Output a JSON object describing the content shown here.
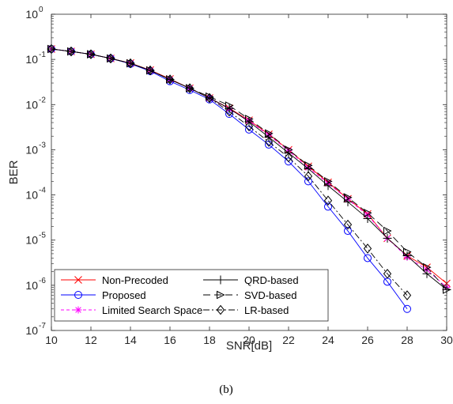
{
  "caption": "(b)",
  "chart_data": {
    "type": "line",
    "xlabel": "SNR[dB]",
    "ylabel": "BER",
    "xlim": [
      10,
      30
    ],
    "ylim": [
      1e-07,
      1
    ],
    "yscale": "log",
    "x_ticks": [
      10,
      12,
      14,
      16,
      18,
      20,
      22,
      24,
      26,
      28,
      30
    ],
    "y_ticks": [
      {
        "base": "10",
        "exp": "0",
        "value": 1
      },
      {
        "base": "10",
        "exp": "-1",
        "value": 0.1
      },
      {
        "base": "10",
        "exp": "-2",
        "value": 0.01
      },
      {
        "base": "10",
        "exp": "-3",
        "value": 0.001
      },
      {
        "base": "10",
        "exp": "-4",
        "value": 0.0001
      },
      {
        "base": "10",
        "exp": "-5",
        "value": 1e-05
      },
      {
        "base": "10",
        "exp": "-6",
        "value": 1e-06
      },
      {
        "base": "10",
        "exp": "-7",
        "value": 1e-07
      }
    ],
    "grid": false,
    "legend_position": "bottom-left",
    "x": [
      10,
      11,
      12,
      13,
      14,
      15,
      16,
      17,
      18,
      19,
      20,
      21,
      22,
      23,
      24,
      25,
      26,
      27,
      28,
      29,
      30
    ],
    "series": [
      {
        "name": "Non-Precoded",
        "color": "#ff0000",
        "dash": "",
        "marker": "x",
        "values": [
          0.17,
          0.15,
          0.13,
          0.105,
          0.083,
          0.058,
          0.037,
          0.023,
          0.014,
          0.0083,
          0.0045,
          0.0022,
          0.001,
          0.00043,
          0.00019,
          8.2e-05,
          3.8e-05,
          1.1e-05,
          4.5e-06,
          2.5e-06,
          1.1e-06
        ]
      },
      {
        "name": "Proposed",
        "color": "#0000ff",
        "dash": "",
        "marker": "circle",
        "values": [
          0.17,
          0.15,
          0.13,
          0.105,
          0.08,
          0.055,
          0.033,
          0.021,
          0.013,
          0.0062,
          0.0028,
          0.0013,
          0.00055,
          0.0002,
          5.5e-05,
          1.6e-05,
          4e-06,
          1.2e-06,
          3e-07,
          null,
          null
        ]
      },
      {
        "name": "Limited Search Space",
        "color": "#ff00ff",
        "dash": "4,3",
        "marker": "star",
        "values": [
          0.17,
          0.15,
          0.13,
          0.105,
          0.082,
          0.057,
          0.036,
          0.023,
          0.014,
          0.008,
          0.0044,
          0.0021,
          0.00095,
          0.0004,
          0.00018,
          8e-05,
          3.6e-05,
          1.1e-05,
          4.2e-06,
          2.2e-06,
          9e-07
        ]
      },
      {
        "name": "QRD-based",
        "color": "#000000",
        "dash": "",
        "marker": "plus",
        "values": [
          0.17,
          0.15,
          0.13,
          0.105,
          0.082,
          0.057,
          0.036,
          0.023,
          0.014,
          0.0082,
          0.0042,
          0.0019,
          0.00085,
          0.00038,
          0.00016,
          7e-05,
          3e-05,
          1.1e-05,
          4.5e-06,
          1.8e-06,
          8e-07
        ]
      },
      {
        "name": "SVD-based",
        "color": "#000000",
        "dash": "9,5",
        "marker": "triangle-right",
        "values": [
          0.17,
          0.15,
          0.13,
          0.105,
          0.082,
          0.057,
          0.036,
          0.023,
          0.015,
          0.0095,
          0.0048,
          0.0023,
          0.001,
          0.00045,
          0.0002,
          8.8e-05,
          4e-05,
          1.6e-05,
          5.5e-06,
          2.5e-06,
          8e-07
        ]
      },
      {
        "name": "LR-based",
        "color": "#000000",
        "dash": "8,3,2,3",
        "marker": "diamond",
        "values": [
          0.17,
          0.15,
          0.13,
          0.105,
          0.082,
          0.057,
          0.036,
          0.023,
          0.014,
          0.007,
          0.0033,
          0.0015,
          0.00068,
          0.00026,
          7.5e-05,
          2.2e-05,
          6.5e-06,
          1.8e-06,
          6e-07,
          null,
          null
        ]
      }
    ]
  }
}
